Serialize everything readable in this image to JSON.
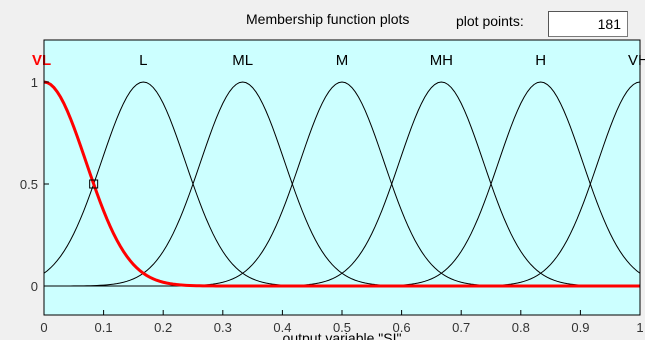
{
  "header": {
    "title": "Membership function plots",
    "plot_points_label": "plot points:",
    "plot_points_value": "181"
  },
  "chart_data": {
    "type": "line",
    "title": "",
    "xlabel": "output variable \"SI\"",
    "ylabel": "",
    "xlim": [
      0,
      1
    ],
    "ylim": [
      0,
      1
    ],
    "x_ticks": [
      "0",
      "0.1",
      "0.2",
      "0.3",
      "0.4",
      "0.5",
      "0.6",
      "0.7",
      "0.8",
      "0.9",
      "1"
    ],
    "y_ticks": [
      "0",
      "0.5",
      "1"
    ],
    "sigma": 0.07077,
    "series": [
      {
        "name": "VL",
        "center": 0.0,
        "selected": true
      },
      {
        "name": "L",
        "center": 0.1667,
        "selected": false
      },
      {
        "name": "ML",
        "center": 0.3333,
        "selected": false
      },
      {
        "name": "M",
        "center": 0.5,
        "selected": false
      },
      {
        "name": "MH",
        "center": 0.6667,
        "selected": false
      },
      {
        "name": "H",
        "center": 0.8333,
        "selected": false
      },
      {
        "name": "VH",
        "center": 1.0,
        "selected": false
      }
    ],
    "colors": {
      "background": "#ccffff",
      "curve": "#000000",
      "selected_curve": "#ff0000"
    }
  }
}
